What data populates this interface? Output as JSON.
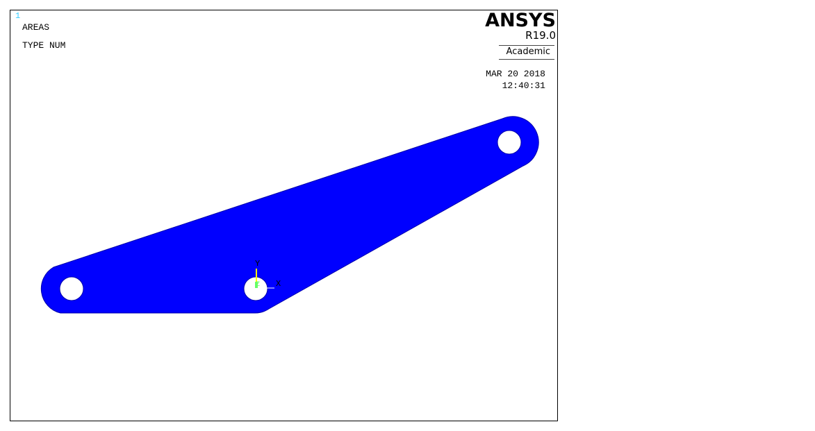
{
  "viewport": {
    "window_number": "1",
    "title_line1": "AREAS",
    "title_line2": "TYPE NUM",
    "logo": {
      "name": "ANSYS",
      "release": "R19.0",
      "license": "Academic"
    },
    "date": "MAR 20 2018",
    "time": "12:40:31",
    "triad": {
      "y_label": "Y",
      "z_label": "Z",
      "x_label": "X"
    }
  },
  "colors": {
    "area_fill": "#0000ff",
    "area_edge": "#0000aa",
    "background": "#ffffff",
    "window_number": "#33ccff",
    "triad_y": "#ffff00",
    "triad_z": "#66ff66",
    "triad_x": "#ffffff"
  }
}
